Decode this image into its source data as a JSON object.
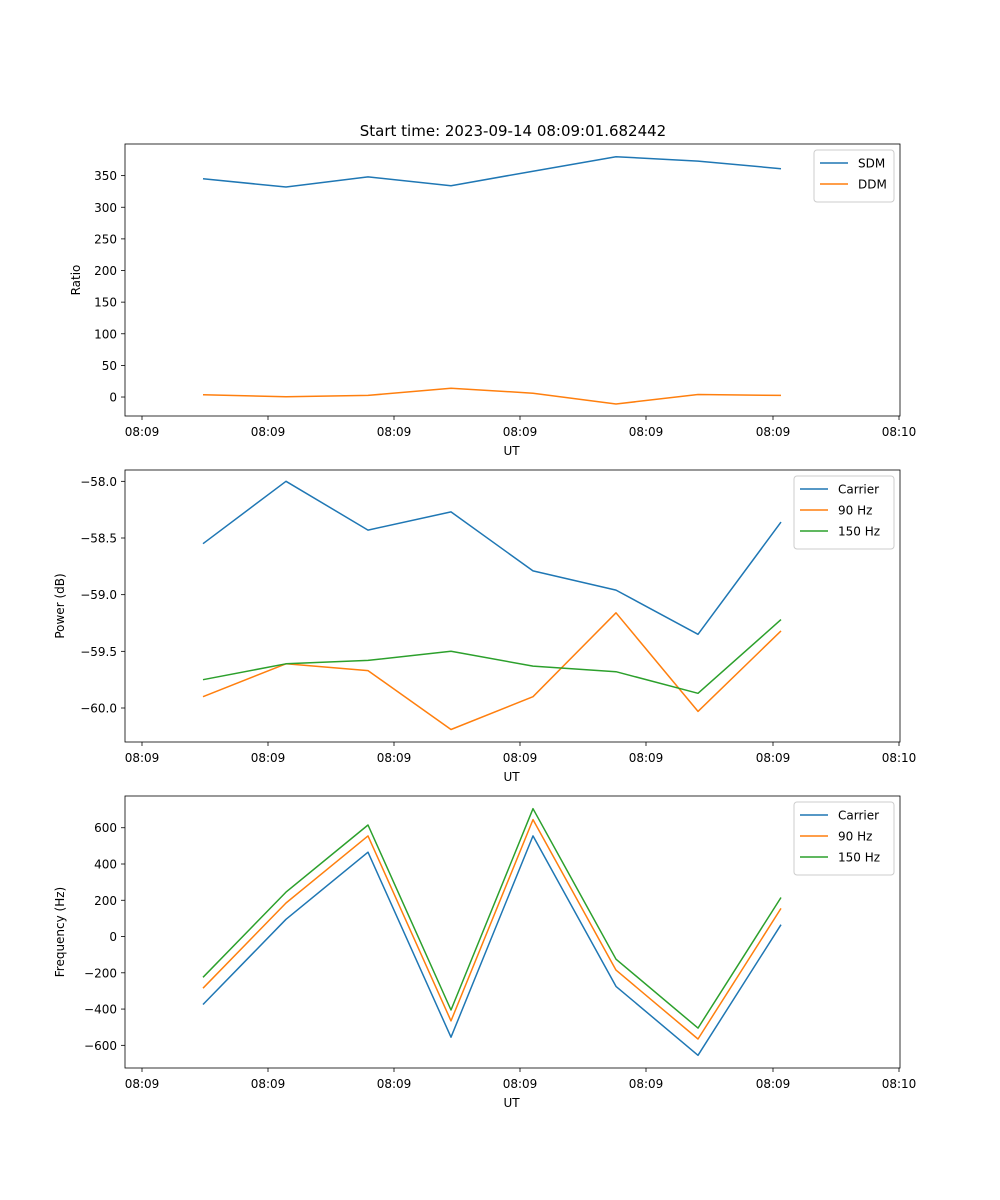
{
  "figure_title": "Start time: 2023-09-14 08:09:01.682442",
  "colors": {
    "blue": "#1f77b4",
    "orange": "#ff7f0e",
    "green": "#2ca02c"
  },
  "chart_data": [
    {
      "type": "line",
      "title": "Start time: 2023-09-14 08:09:01.682442",
      "xlabel": "UT",
      "ylabel": "Ratio",
      "x_tick_labels": [
        "08:09",
        "08:09",
        "08:09",
        "08:09",
        "08:09",
        "08:09",
        "08:10"
      ],
      "y_ticks": [
        0,
        50,
        100,
        150,
        200,
        250,
        300,
        350
      ],
      "y_tick_labels": [
        "0",
        "50",
        "100",
        "150",
        "200",
        "250",
        "300",
        "350"
      ],
      "ylim": [
        -30,
        400
      ],
      "grid": false,
      "legend": "top-right",
      "series": [
        {
          "name": "SDM",
          "color": "#1f77b4",
          "values": [
            345,
            332,
            348,
            334,
            357,
            380,
            373,
            361
          ]
        },
        {
          "name": "DDM",
          "color": "#ff7f0e",
          "values": [
            3.5,
            0.5,
            2.5,
            14,
            6,
            -11,
            4,
            2.5
          ]
        }
      ]
    },
    {
      "type": "line",
      "xlabel": "UT",
      "ylabel": "Power (dB)",
      "x_tick_labels": [
        "08:09",
        "08:09",
        "08:09",
        "08:09",
        "08:09",
        "08:09",
        "08:10"
      ],
      "y_ticks": [
        -60.0,
        -59.5,
        -59.0,
        -58.5,
        -58.0
      ],
      "y_tick_labels": [
        "−60.0",
        "−59.5",
        "−59.0",
        "−58.5",
        "−58.0"
      ],
      "ylim": [
        -60.3,
        -57.9
      ],
      "grid": false,
      "legend": "top-right",
      "series": [
        {
          "name": "Carrier",
          "color": "#1f77b4",
          "values": [
            -58.55,
            -58.0,
            -58.43,
            -58.27,
            -58.79,
            -58.96,
            -59.35,
            -58.36
          ]
        },
        {
          "name": "90 Hz",
          "color": "#ff7f0e",
          "values": [
            -59.9,
            -59.61,
            -59.67,
            -60.19,
            -59.9,
            -59.16,
            -60.03,
            -59.32
          ]
        },
        {
          "name": "150 Hz",
          "color": "#2ca02c",
          "values": [
            -59.75,
            -59.61,
            -59.58,
            -59.5,
            -59.63,
            -59.68,
            -59.87,
            -59.22
          ]
        }
      ]
    },
    {
      "type": "line",
      "xlabel": "UT",
      "ylabel": "Frequency (Hz)",
      "x_tick_labels": [
        "08:09",
        "08:09",
        "08:09",
        "08:09",
        "08:09",
        "08:09",
        "08:10"
      ],
      "y_ticks": [
        -600,
        -400,
        -200,
        0,
        200,
        400,
        600
      ],
      "y_tick_labels": [
        "−600",
        "−400",
        "−200",
        "0",
        "200",
        "400",
        "600"
      ],
      "ylim": [
        -725,
        775
      ],
      "grid": false,
      "legend": "top-right",
      "series": [
        {
          "name": "Carrier",
          "color": "#1f77b4",
          "values": [
            -375,
            95,
            465,
            -555,
            555,
            -275,
            -655,
            65
          ]
        },
        {
          "name": "90 Hz",
          "color": "#ff7f0e",
          "values": [
            -285,
            185,
            555,
            -465,
            645,
            -185,
            -565,
            155
          ]
        },
        {
          "name": "150 Hz",
          "color": "#2ca02c",
          "values": [
            -225,
            245,
            615,
            -405,
            705,
            -125,
            -505,
            215
          ]
        }
      ]
    }
  ]
}
